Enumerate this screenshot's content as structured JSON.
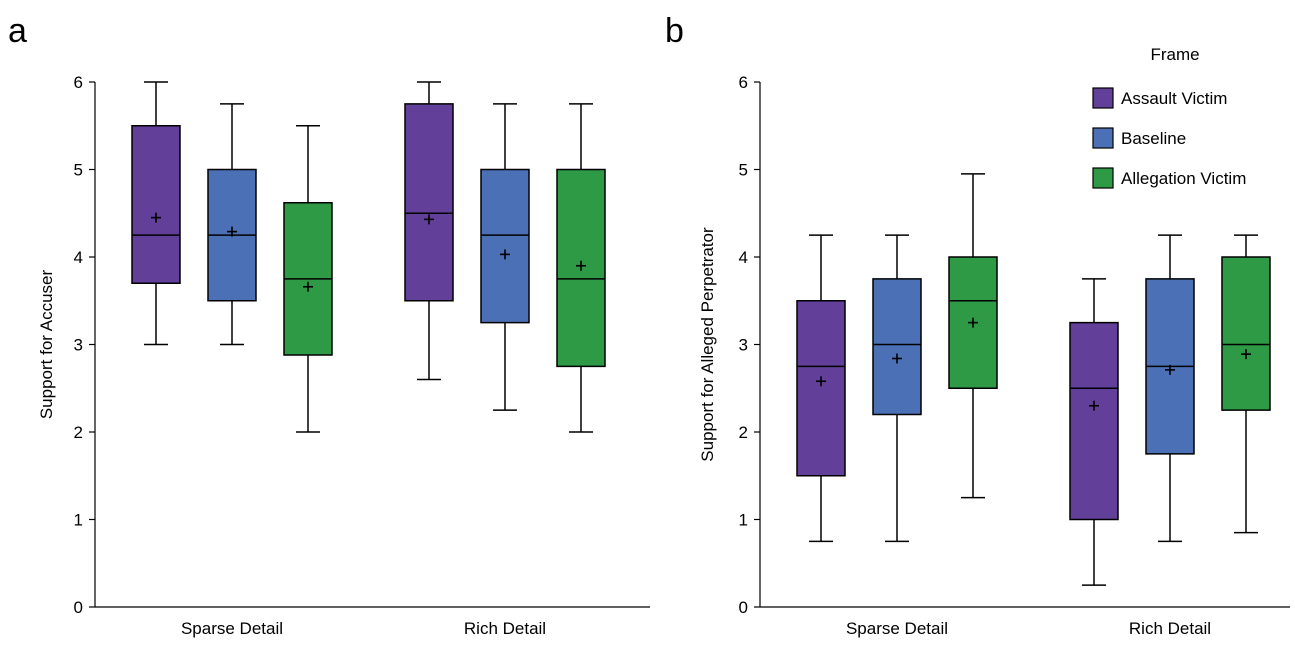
{
  "colors": {
    "Assault Victim": "#623f99",
    "Baseline": "#4b70b6",
    "Allegation Victim": "#2e9a46"
  },
  "legend": {
    "title": "Frame",
    "items": [
      "Assault Victim",
      "Baseline",
      "Allegation Victim"
    ]
  },
  "chart_data": [
    {
      "type": "boxplot",
      "panel_label": "a",
      "xlabel": "",
      "ylabel": "Support for Accuser",
      "ylim": [
        0,
        6
      ],
      "yticks": [
        0,
        1,
        2,
        3,
        4,
        5,
        6
      ],
      "categories": [
        "Sparse Detail",
        "Rich Detail"
      ],
      "grid": false,
      "legend": "none",
      "series": [
        {
          "name": "Assault Victim",
          "boxes": [
            {
              "min": 3.0,
              "q1": 3.7,
              "median": 4.25,
              "q3": 5.5,
              "max": 6.0,
              "mean": 4.45
            },
            {
              "min": 2.6,
              "q1": 3.5,
              "median": 4.5,
              "q3": 5.75,
              "max": 6.0,
              "mean": 4.43
            }
          ]
        },
        {
          "name": "Baseline",
          "boxes": [
            {
              "min": 3.0,
              "q1": 3.5,
              "median": 4.25,
              "q3": 5.0,
              "max": 5.75,
              "mean": 4.29
            },
            {
              "min": 2.25,
              "q1": 3.25,
              "median": 4.25,
              "q3": 5.0,
              "max": 5.75,
              "mean": 4.03
            }
          ]
        },
        {
          "name": "Allegation Victim",
          "boxes": [
            {
              "min": 2.0,
              "q1": 2.88,
              "median": 3.75,
              "q3": 4.62,
              "max": 5.5,
              "mean": 3.66
            },
            {
              "min": 2.0,
              "q1": 2.75,
              "median": 3.75,
              "q3": 5.0,
              "max": 5.75,
              "mean": 3.9
            }
          ]
        }
      ]
    },
    {
      "type": "boxplot",
      "panel_label": "b",
      "xlabel": "",
      "ylabel": "Support for Alleged Perpetrator",
      "ylim": [
        0,
        6
      ],
      "yticks": [
        0,
        1,
        2,
        3,
        4,
        5,
        6
      ],
      "categories": [
        "Sparse Detail",
        "Rich Detail"
      ],
      "grid": false,
      "legend": "top-right",
      "series": [
        {
          "name": "Assault Victim",
          "boxes": [
            {
              "min": 0.75,
              "q1": 1.5,
              "median": 2.75,
              "q3": 3.5,
              "max": 4.25,
              "mean": 2.58
            },
            {
              "min": 0.25,
              "q1": 1.0,
              "median": 2.5,
              "q3": 3.25,
              "max": 3.75,
              "mean": 2.3
            }
          ]
        },
        {
          "name": "Baseline",
          "boxes": [
            {
              "min": 0.75,
              "q1": 2.2,
              "median": 3.0,
              "q3": 3.75,
              "max": 4.25,
              "mean": 2.84
            },
            {
              "min": 0.75,
              "q1": 1.75,
              "median": 2.75,
              "q3": 3.75,
              "max": 4.25,
              "mean": 2.71
            }
          ]
        },
        {
          "name": "Allegation Victim",
          "boxes": [
            {
              "min": 1.25,
              "q1": 2.5,
              "median": 3.5,
              "q3": 4.0,
              "max": 4.95,
              "mean": 3.25
            },
            {
              "min": 0.85,
              "q1": 2.25,
              "median": 3.0,
              "q3": 4.0,
              "max": 4.25,
              "mean": 2.89
            }
          ]
        }
      ]
    }
  ]
}
